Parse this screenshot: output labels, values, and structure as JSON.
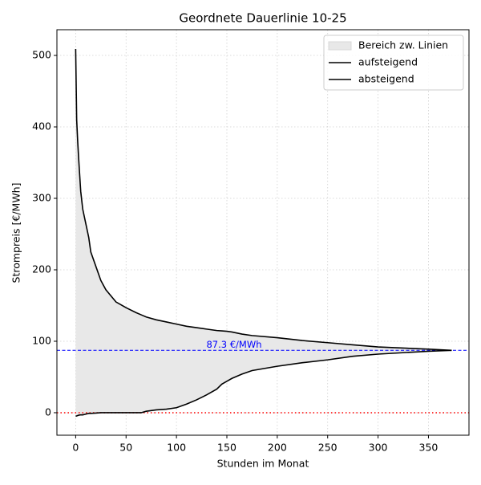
{
  "chart_data": {
    "type": "line",
    "title": "Geordnete Dauerlinie 10-25",
    "xlabel": "Stunden im Monat",
    "ylabel": "Strompreis [€/MWh]",
    "x": [
      0,
      1,
      2,
      3,
      5,
      7,
      10,
      13,
      15,
      20,
      25,
      30,
      40,
      50,
      60,
      65,
      70,
      80,
      90,
      100,
      110,
      120,
      130,
      140,
      145,
      150,
      155,
      165,
      175,
      200,
      225,
      250,
      275,
      300,
      350,
      373
    ],
    "series": [
      {
        "name": "aufsteigend",
        "color": "#000000",
        "values": [
          -5,
          -4.5,
          -4,
          -3.5,
          -3,
          -3,
          -2,
          -1,
          -1,
          -0.5,
          0,
          0,
          0,
          0,
          0,
          0,
          2,
          4,
          5,
          7,
          12,
          18,
          25,
          33,
          40,
          44,
          48,
          54,
          59,
          65,
          70,
          74,
          79,
          82,
          86,
          87.3
        ]
      },
      {
        "name": "absteigend",
        "color": "#000000",
        "values": [
          509,
          410,
          380,
          355,
          310,
          285,
          265,
          245,
          225,
          205,
          185,
          172,
          155,
          147,
          140,
          137,
          134,
          130,
          127,
          124,
          121,
          119,
          117,
          115,
          114.5,
          114,
          113,
          110,
          108,
          105,
          101,
          98,
          95,
          92,
          89,
          87.3
        ]
      }
    ],
    "fill": {
      "name": "Bereich zw. Linien",
      "color": "#e8e8e8"
    },
    "hline": {
      "value": 87.3,
      "label": "87.3 €/MWh",
      "color": "#0000ff"
    },
    "zero_line": {
      "value": 0,
      "color": "#ff0000"
    },
    "xlim": [
      -18.6,
      390.2
    ],
    "ylim": [
      -31.5,
      536
    ],
    "xticks": [
      0,
      50,
      100,
      150,
      200,
      250,
      300,
      350
    ],
    "yticks": [
      0,
      100,
      200,
      300,
      400,
      500
    ],
    "grid": true,
    "legend": "upper right"
  }
}
